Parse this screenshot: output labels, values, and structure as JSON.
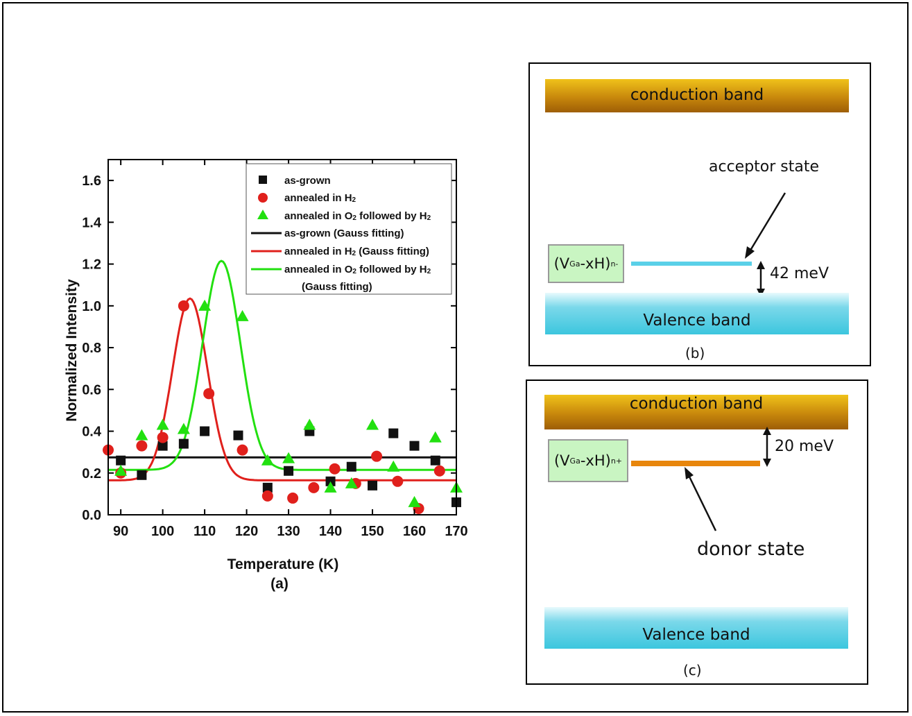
{
  "chart_data": {
    "type": "scatter",
    "xlabel": "Temperature (K)",
    "ylabel": "Normalized Intensity",
    "caption": "(a)",
    "xlim": [
      87,
      170
    ],
    "ylim": [
      0.0,
      1.7
    ],
    "x_ticks": [
      90,
      100,
      110,
      120,
      130,
      140,
      150,
      160,
      170
    ],
    "y_ticks": [
      0.0,
      0.2,
      0.4,
      0.6,
      0.8,
      1.0,
      1.2,
      1.4,
      1.6
    ],
    "x_tick_labels": [
      "90",
      "100",
      "110",
      "120",
      "130",
      "140",
      "150",
      "160",
      "170"
    ],
    "y_tick_labels": [
      "0.0",
      "0.2",
      "0.4",
      "0.6",
      "0.8",
      "1.0",
      "1.2",
      "1.4",
      "1.6"
    ],
    "legend_position": "top-right",
    "series": [
      {
        "name": "as-grown",
        "marker": "square",
        "color": "#111111",
        "x": [
          90,
          95,
          100,
          105,
          110,
          118,
          125,
          130,
          135,
          140,
          145,
          150,
          155,
          160,
          165,
          170
        ],
        "y": [
          0.26,
          0.19,
          0.33,
          0.34,
          0.4,
          0.38,
          0.13,
          0.21,
          0.4,
          0.16,
          0.23,
          0.14,
          0.39,
          0.33,
          0.26,
          0.06
        ]
      },
      {
        "name": "annealed in H",
        "name_sub": "2",
        "marker": "circle",
        "color": "#e0201c",
        "x": [
          87,
          90,
          95,
          100,
          105,
          111,
          119,
          125,
          131,
          136,
          141,
          146,
          151,
          156,
          161,
          166
        ],
        "y": [
          0.31,
          0.2,
          0.33,
          0.37,
          1.0,
          0.58,
          0.31,
          0.09,
          0.08,
          0.13,
          0.22,
          0.15,
          0.28,
          0.16,
          0.03,
          0.21
        ]
      },
      {
        "name": "annealed in O",
        "name_sub": "2",
        "name_tail": " followed by H",
        "name_tail_sub": "2",
        "marker": "triangle",
        "color": "#22e010",
        "x": [
          90,
          95,
          100,
          105,
          110,
          119,
          125,
          130,
          135,
          140,
          145,
          150,
          155,
          160,
          165,
          170
        ],
        "y": [
          0.21,
          0.38,
          0.43,
          0.41,
          1.0,
          0.95,
          0.26,
          0.27,
          0.43,
          0.13,
          0.15,
          0.43,
          0.23,
          0.06,
          0.37,
          0.13
        ]
      }
    ],
    "fits": [
      {
        "name": "as-grown (Gauss fitting)",
        "color": "#111111",
        "baseline": 0.275,
        "amplitude": 0.0,
        "center": 110,
        "width": 5
      },
      {
        "name": "annealed in H",
        "name_sub": "2",
        "name_tail": " (Gauss fitting)",
        "color": "#e0201c",
        "baseline": 0.165,
        "amplitude": 0.87,
        "center": 106.5,
        "width": 4.2
      },
      {
        "name": "annealed in O",
        "name_sub": "2",
        "name_tail": " followed by H",
        "name_tail_sub": "2",
        "name_line2": "(Gauss fitting)",
        "color": "#22e010",
        "baseline": 0.215,
        "amplitude": 1.0,
        "center": 114,
        "width": 4.5
      }
    ]
  },
  "panel_b": {
    "conduction_band": "conduction band",
    "valence_band": "Valence band",
    "state_label": "acceptor state",
    "defect_main": "(V",
    "defect_sub": "Ga",
    "defect_mid": "-xH)",
    "defect_sup": "n-",
    "energy": "42 meV",
    "caption": "(b)",
    "level_color": "#5ad0e8"
  },
  "panel_c": {
    "conduction_band": "conduction band",
    "valence_band": "Valence band",
    "state_label": "donor state",
    "defect_main": "(V",
    "defect_sub": "Ga",
    "defect_mid": "-xH)",
    "defect_sup": "n+",
    "energy": "20 meV",
    "caption": "(c)",
    "level_color": "#e8860c"
  }
}
